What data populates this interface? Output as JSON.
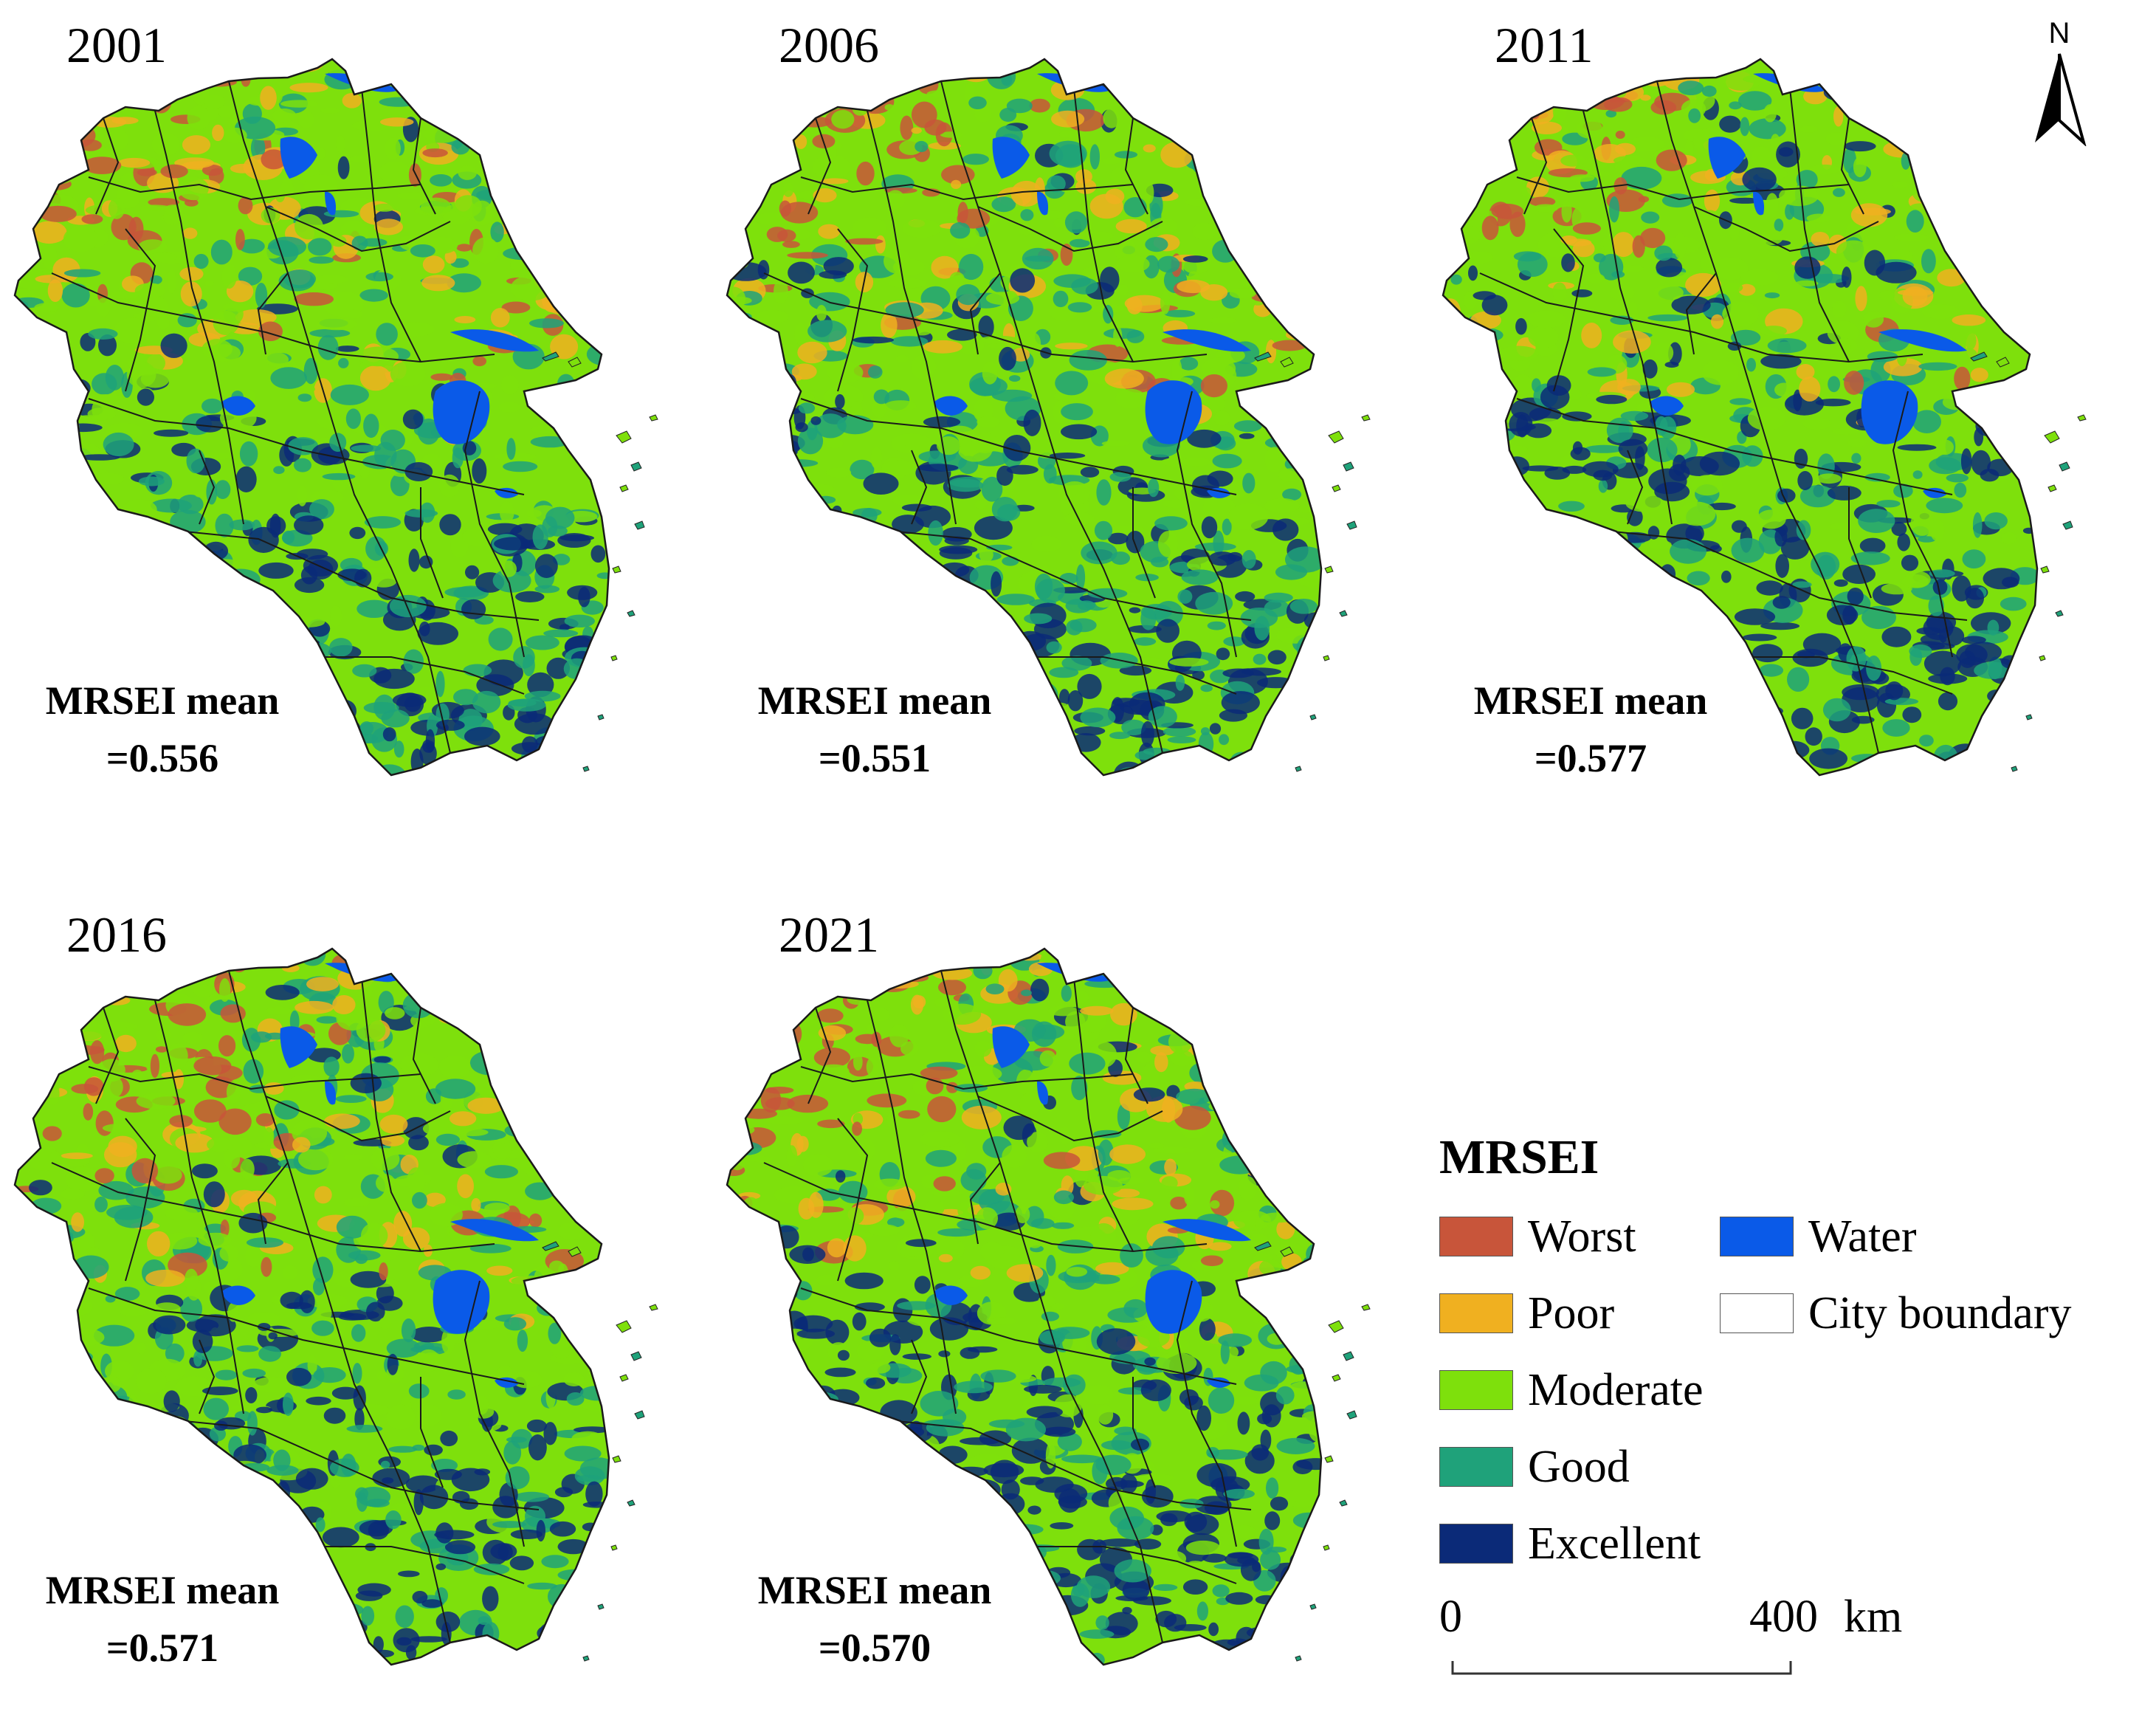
{
  "panels": [
    {
      "year": "2001",
      "mean_label": "MRSEI mean",
      "mean_value": "=0.556"
    },
    {
      "year": "2006",
      "mean_label": "MRSEI mean",
      "mean_value": "=0.551"
    },
    {
      "year": "2011",
      "mean_label": "MRSEI mean",
      "mean_value": "=0.577"
    },
    {
      "year": "2016",
      "mean_label": "MRSEI mean",
      "mean_value": "=0.571"
    },
    {
      "year": "2021",
      "mean_label": "MRSEI mean",
      "mean_value": "=0.570"
    }
  ],
  "north_arrow": {
    "label": "N"
  },
  "legend": {
    "title": "MRSEI",
    "items": [
      {
        "label": "Worst",
        "color": "#c8553a"
      },
      {
        "label": "Poor",
        "color": "#f0b020"
      },
      {
        "label": "Moderate",
        "color": "#7ee00c"
      },
      {
        "label": "Good",
        "color": "#1fa27a"
      },
      {
        "label": "Excellent",
        "color": "#0b2a78"
      },
      {
        "label": "Water",
        "color": "#0a5ae8"
      },
      {
        "label": "City boundary",
        "color": "#ffffff"
      }
    ]
  },
  "scale_bar": {
    "start": "0",
    "end": "400",
    "unit": "km"
  }
}
